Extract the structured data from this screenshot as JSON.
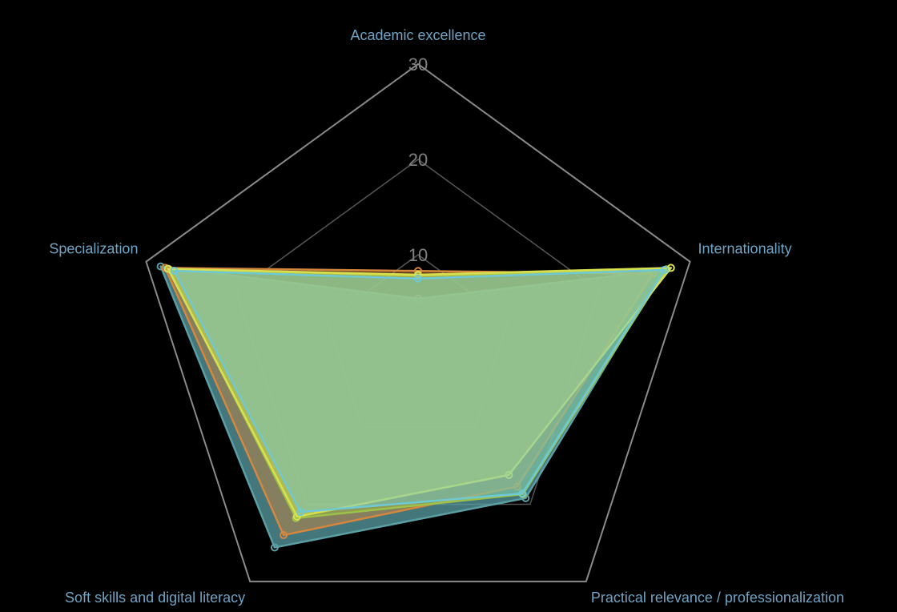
{
  "chart_data": {
    "type": "radar",
    "axes": [
      "Academic excellence",
      "Internationality",
      "Practical relevance / professionalization",
      "Soft skills and digital literacy",
      "Specialization"
    ],
    "rlim": [
      0,
      30
    ],
    "ticks": [
      10,
      20,
      30
    ],
    "series": [
      {
        "color": "#5a9fa4",
        "values": [
          5.4,
          27.1,
          19.2,
          25.6,
          28.4
        ]
      },
      {
        "color": "#d6873e",
        "values": [
          8.3,
          25.9,
          17.7,
          24.0,
          27.9
        ]
      },
      {
        "color": "#9cc24a",
        "values": [
          7.8,
          27.4,
          18.7,
          21.8,
          27.5
        ]
      },
      {
        "color": "#d8e050",
        "values": [
          7.9,
          27.9,
          16.2,
          21.6,
          27.6
        ]
      },
      {
        "color": "#6ec9d4",
        "values": [
          7.5,
          27.2,
          18.6,
          21.0,
          26.9
        ]
      }
    ]
  }
}
